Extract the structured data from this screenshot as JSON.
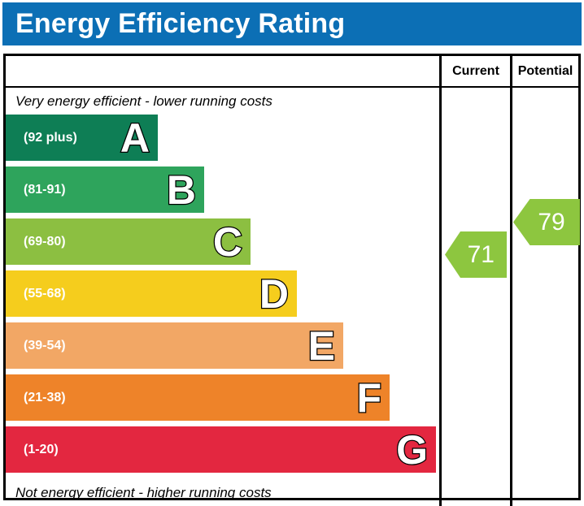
{
  "header": {
    "title": "Energy Efficiency Rating",
    "background_color": "#0c6fb5"
  },
  "table": {
    "columns": {
      "current_label": "Current",
      "potential_label": "Potential"
    },
    "captions": {
      "top": "Very energy efficient - lower running costs",
      "bottom": "Not energy efficient - higher running costs"
    }
  },
  "ratings": {
    "current": {
      "value": "71",
      "band": "C",
      "color": "#8dc63f"
    },
    "potential": {
      "value": "79",
      "band": "C",
      "color": "#8dc63f"
    }
  },
  "chart_data": {
    "type": "bar",
    "orientation": "horizontal",
    "title": "Energy Efficiency Rating",
    "bands": [
      {
        "letter": "A",
        "range_label": "(92 plus)",
        "min": 92,
        "max": 100,
        "color": "#0e7e55"
      },
      {
        "letter": "B",
        "range_label": "(81-91)",
        "min": 81,
        "max": 91,
        "color": "#2ea45c"
      },
      {
        "letter": "C",
        "range_label": "(69-80)",
        "min": 69,
        "max": 80,
        "color": "#8cbf41"
      },
      {
        "letter": "D",
        "range_label": "(55-68)",
        "min": 55,
        "max": 68,
        "color": "#f5cd1d"
      },
      {
        "letter": "E",
        "range_label": "(39-54)",
        "min": 39,
        "max": 54,
        "color": "#f2a765"
      },
      {
        "letter": "F",
        "range_label": "(21-38)",
        "min": 21,
        "max": 38,
        "color": "#ee8329"
      },
      {
        "letter": "G",
        "range_label": "(1-20)",
        "min": 1,
        "max": 20,
        "color": "#e32740"
      }
    ],
    "current": 71,
    "potential": 79,
    "annotations": [
      "Very energy efficient - lower running costs",
      "Not energy efficient - higher running costs"
    ]
  }
}
